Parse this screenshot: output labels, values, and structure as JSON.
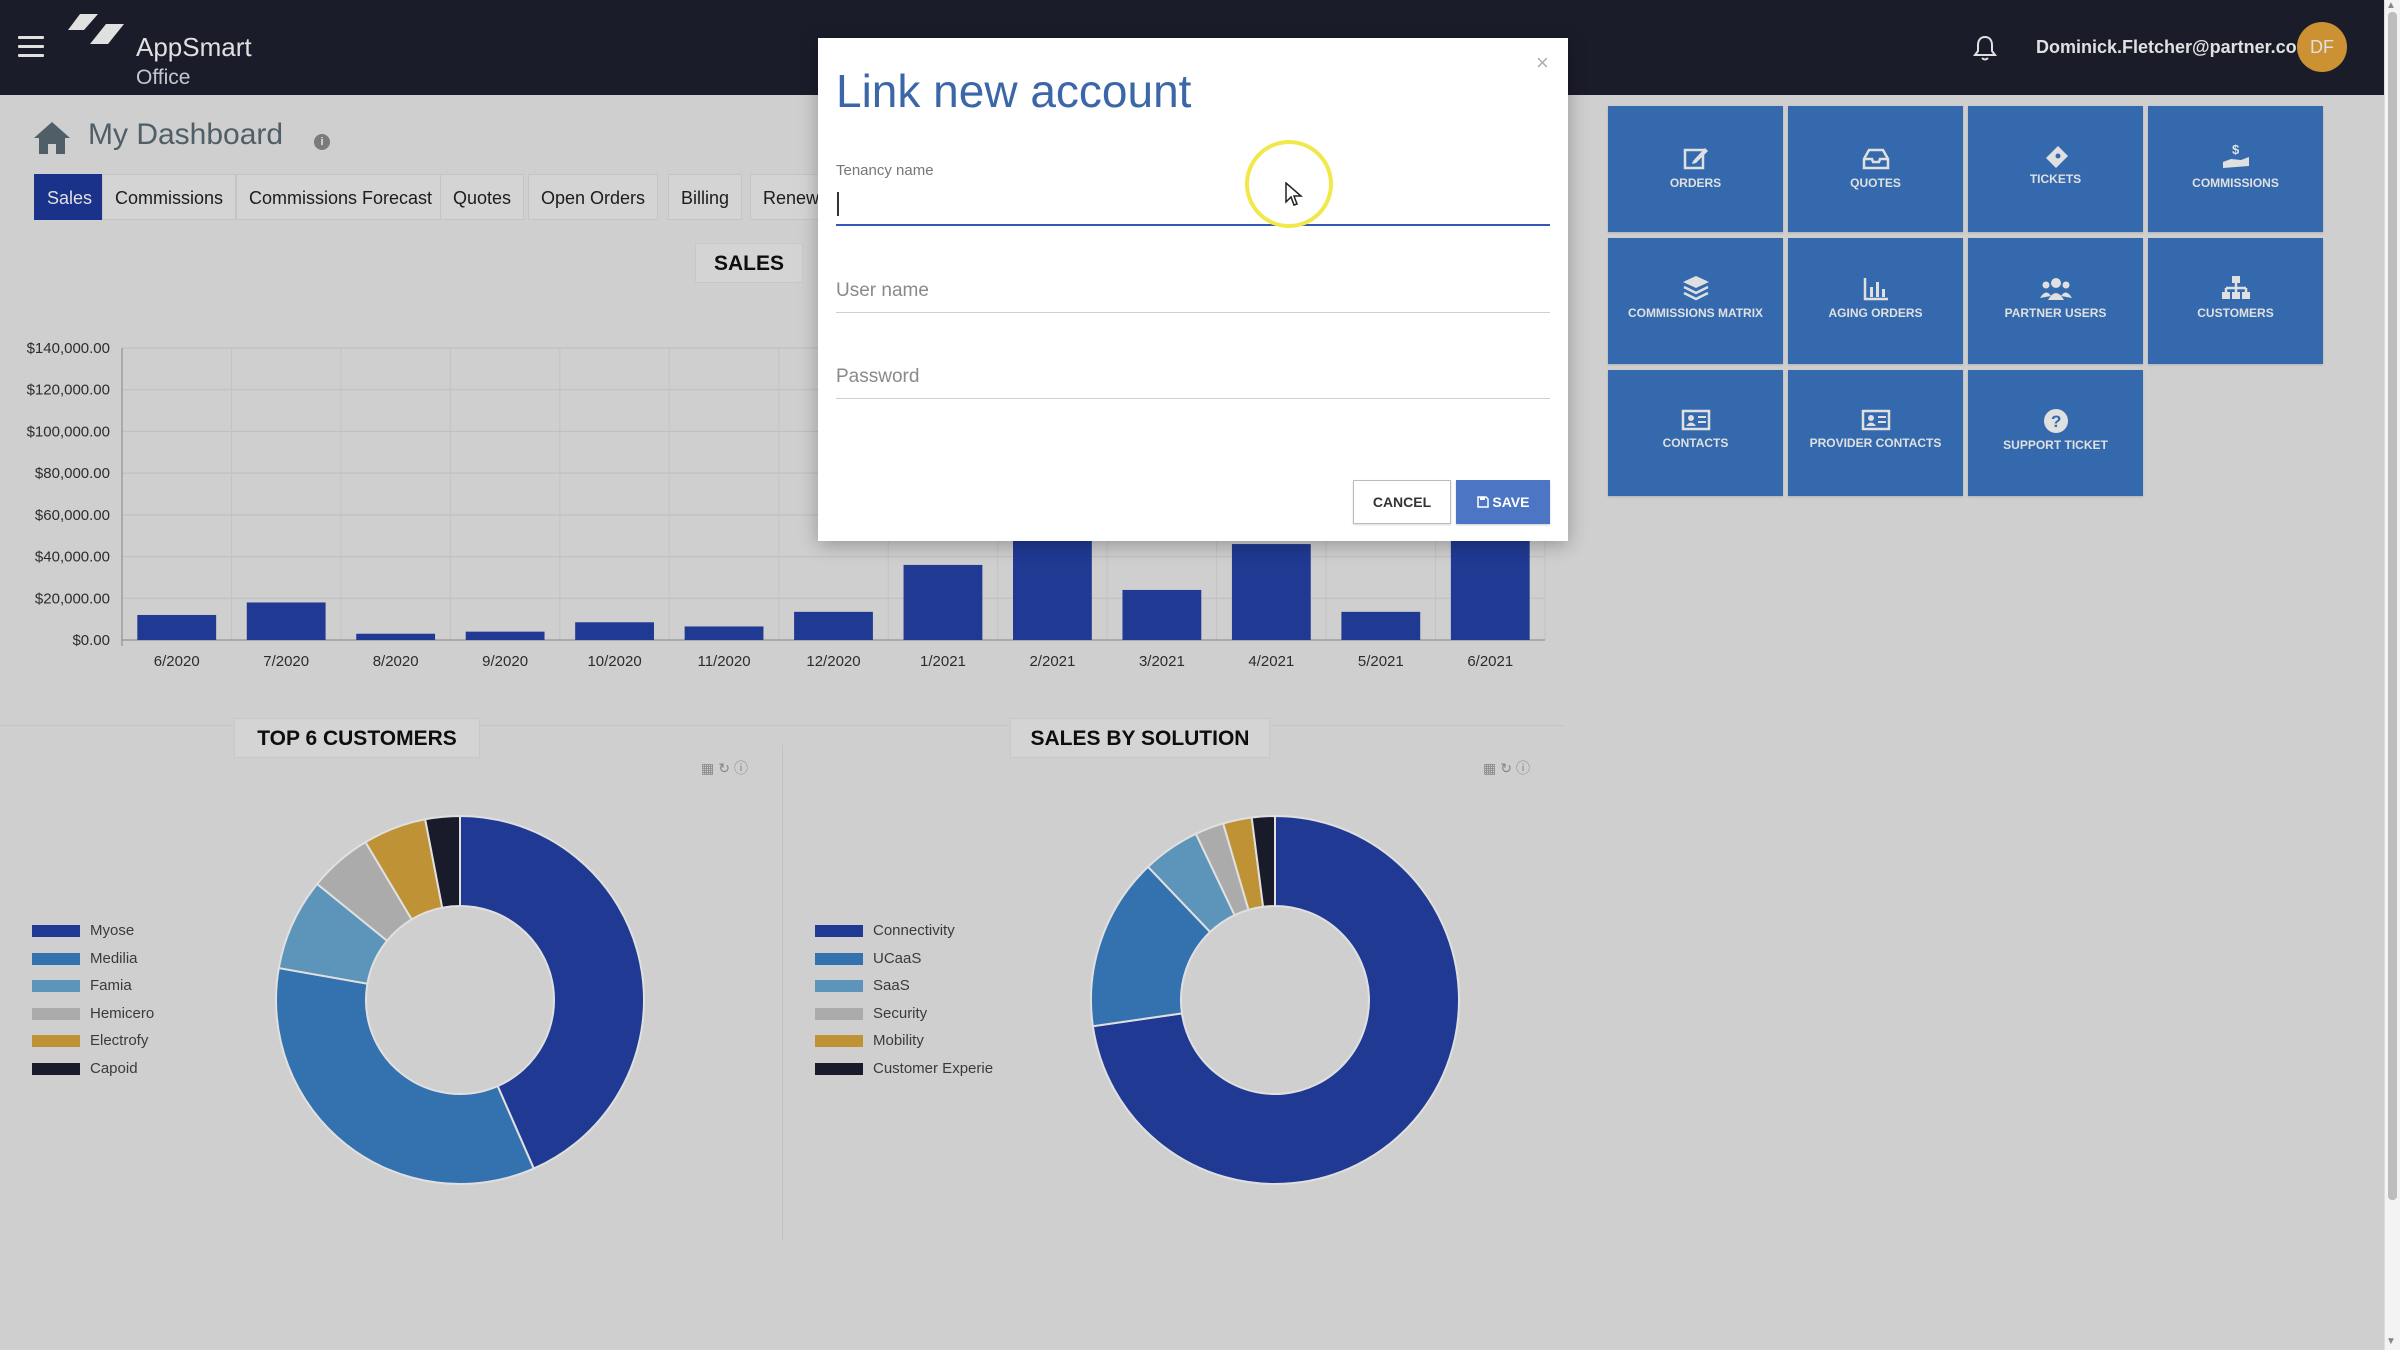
{
  "header": {
    "app_name": "AppSmart",
    "app_sub": "Office",
    "user_email": "Dominick.Fletcher@partner.com",
    "avatar_initials": "DF"
  },
  "page": {
    "title": "My Dashboard",
    "info_glyph": "i"
  },
  "tabs": [
    {
      "label": "Sales",
      "active": true
    },
    {
      "label": "Commissions"
    },
    {
      "label": "Commissions Forecast"
    },
    {
      "label": "Quotes"
    },
    {
      "label": "Open Orders"
    },
    {
      "label": "Billing"
    },
    {
      "label": "Renewa"
    }
  ],
  "sections": {
    "sales": "SALES",
    "top_customers": "TOP 6 CUSTOMERS",
    "sales_by_solution": "SALES BY SOLUTION"
  },
  "tiles": [
    {
      "label": "ORDERS",
      "icon": "edit-icon"
    },
    {
      "label": "QUOTES",
      "icon": "inbox-icon"
    },
    {
      "label": "TICKETS",
      "icon": "ticket-icon"
    },
    {
      "label": "COMMISSIONS",
      "icon": "dollar-hand-icon"
    },
    {
      "label": "COMMISSIONS MATRIX",
      "icon": "layers-icon"
    },
    {
      "label": "AGING ORDERS",
      "icon": "bar-chart-icon"
    },
    {
      "label": "PARTNER USERS",
      "icon": "users-icon"
    },
    {
      "label": "CUSTOMERS",
      "icon": "sitemap-icon"
    },
    {
      "label": "CONTACTS",
      "icon": "id-card-icon"
    },
    {
      "label": "PROVIDER CONTACTS",
      "icon": "id-card-icon"
    },
    {
      "label": "SUPPORT TICKET",
      "icon": "question-icon"
    }
  ],
  "modal": {
    "title": "Link new account",
    "close_glyph": "×",
    "tenancy_label": "Tenancy name",
    "tenancy_value": "",
    "username_placeholder": "User name",
    "password_placeholder": "Password",
    "cancel_label": "CANCEL",
    "save_label": "SAVE"
  },
  "colors": {
    "bar": "#2542a8",
    "tile": "#3c78c6",
    "modal_title": "#3b66a8",
    "active_tab": "#1f3a9e"
  },
  "chart_data": [
    {
      "type": "bar",
      "title": "SALES",
      "categories": [
        "6/2020",
        "7/2020",
        "8/2020",
        "9/2020",
        "10/2020",
        "11/2020",
        "12/2020",
        "1/2021",
        "2/2021",
        "3/2021",
        "4/2021",
        "5/2021",
        "6/2021"
      ],
      "values": [
        12000,
        18000,
        3000,
        4000,
        8500,
        6500,
        13500,
        36000,
        65000,
        24000,
        46000,
        13500,
        56000
      ],
      "yticks": [
        "$0.00",
        "$20,000.00",
        "$40,000.00",
        "$60,000.00",
        "$80,000.00",
        "$100,000.00",
        "$120,000.00",
        "$140,000.00"
      ],
      "ylim": [
        0,
        140000
      ],
      "grid": true
    },
    {
      "type": "pie",
      "title": "TOP 6 CUSTOMERS",
      "labels": [
        "Myose",
        "Medilia",
        "Famia",
        "Hemicero",
        "Electrofy",
        "Capoid"
      ],
      "values": [
        43,
        34,
        8,
        5.5,
        5.5,
        3
      ],
      "colors": [
        "#2542a8",
        "#3c82c8",
        "#6aaad4",
        "#c3c3c3",
        "#dba73e",
        "#1e1f30"
      ],
      "legend": "left"
    },
    {
      "type": "pie",
      "title": "SALES BY SOLUTION",
      "labels": [
        "Connectivity",
        "UCaaS",
        "SaaS",
        "Security",
        "Mobility",
        "Customer Experie"
      ],
      "values": [
        72,
        15,
        5,
        2.5,
        2.5,
        2
      ],
      "colors": [
        "#2542a8",
        "#3c82c8",
        "#6aaad4",
        "#c3c3c3",
        "#dba73e",
        "#1e1f30"
      ],
      "legend": "left"
    }
  ]
}
